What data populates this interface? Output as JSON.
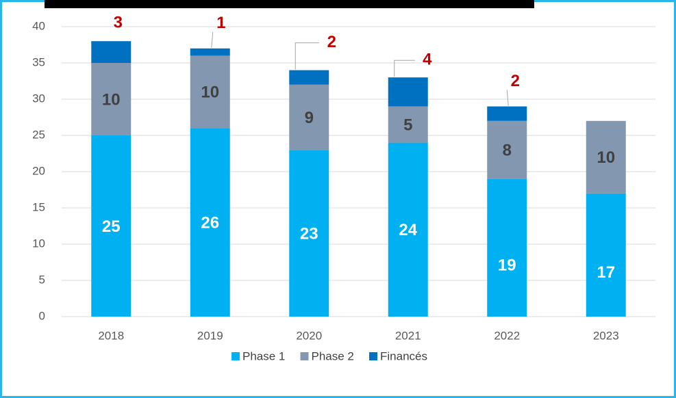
{
  "chart_data": {
    "type": "stacked_bar",
    "categories": [
      "2018",
      "2019",
      "2020",
      "2021",
      "2022",
      "2023"
    ],
    "series": [
      {
        "name": "Phase 1",
        "color": "#00b0f0",
        "values": [
          25,
          26,
          23,
          24,
          19,
          17
        ]
      },
      {
        "name": "Phase 2",
        "color": "#8497b0",
        "values": [
          10,
          10,
          9,
          5,
          8,
          10
        ]
      },
      {
        "name": "Financés",
        "color": "#0070c0",
        "values": [
          3,
          1,
          2,
          4,
          2,
          null
        ]
      }
    ],
    "ylim": [
      0,
      40
    ],
    "yticks": [
      0,
      5,
      10,
      15,
      20,
      25,
      30,
      35,
      40
    ],
    "grid": true,
    "legend": "bottom"
  }
}
